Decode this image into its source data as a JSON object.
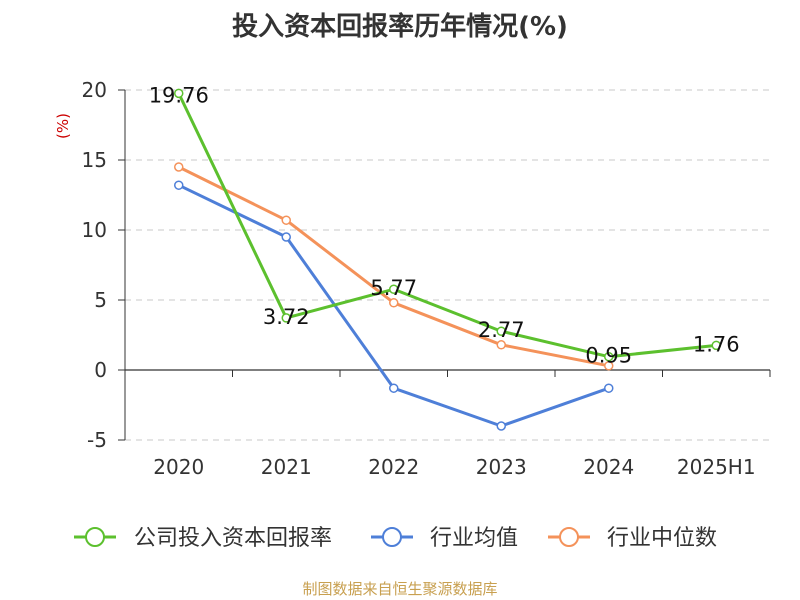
{
  "chart_data": {
    "type": "line",
    "title": "投入资本回报率历年情况(%)",
    "ylabel": "(%)",
    "xlabel": "",
    "categories": [
      "2020",
      "2021",
      "2022",
      "2023",
      "2024",
      "2025H1"
    ],
    "ylim": [
      -5,
      20
    ],
    "yticks": [
      -5,
      0,
      5,
      10,
      15,
      20
    ],
    "grid": true,
    "legend_position": "bottom",
    "series": [
      {
        "name": "公司投入资本回报率",
        "color": "#5cc02e",
        "values": [
          19.76,
          3.72,
          5.77,
          2.77,
          0.95,
          1.76
        ],
        "data_labels": [
          "19.76",
          "3.72",
          "5.77",
          "2.77",
          "0.95",
          "1.76"
        ]
      },
      {
        "name": "行业均值",
        "color": "#4e7fd8",
        "values": [
          13.2,
          9.5,
          -1.3,
          -4.0,
          -1.3,
          null
        ]
      },
      {
        "name": "行业中位数",
        "color": "#f4925a",
        "values": [
          14.5,
          10.7,
          4.8,
          1.8,
          0.3,
          null
        ]
      }
    ],
    "source": "制图数据来自恒生聚源数据库"
  }
}
